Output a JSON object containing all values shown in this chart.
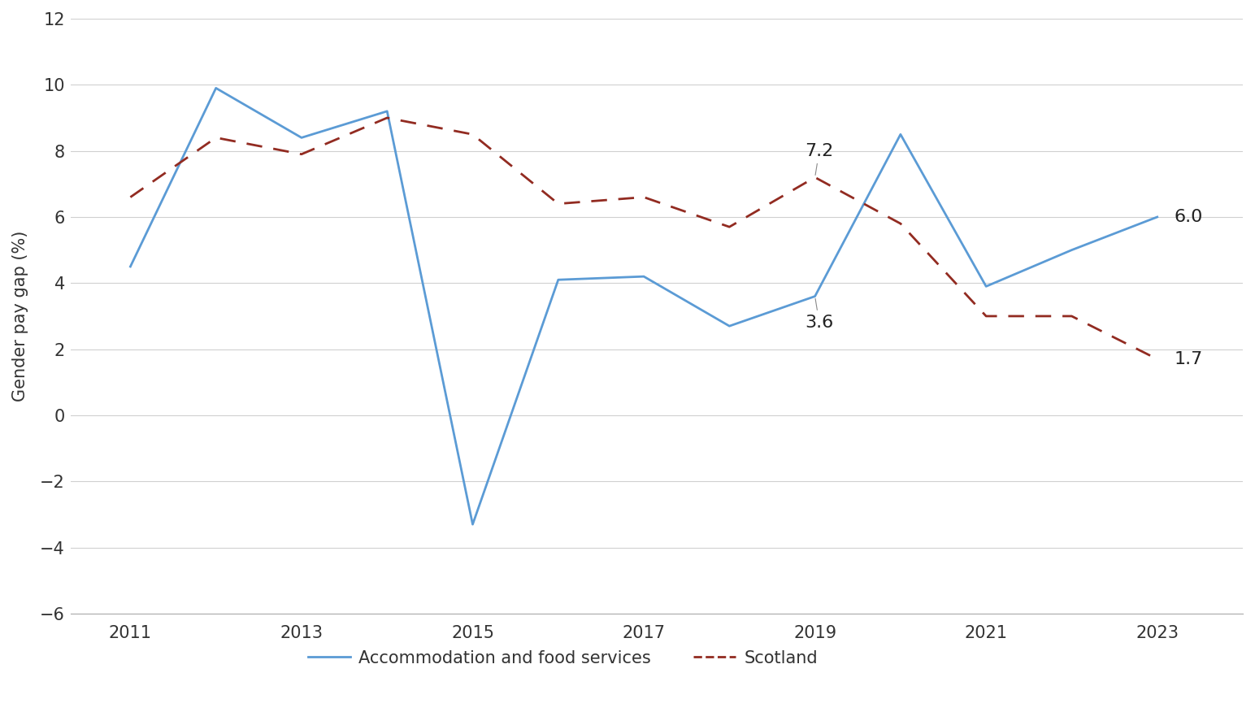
{
  "years": [
    2011,
    2012,
    2013,
    2014,
    2015,
    2016,
    2017,
    2018,
    2019,
    2020,
    2021,
    2022,
    2023
  ],
  "accommodation": [
    4.5,
    9.9,
    8.4,
    9.2,
    -3.3,
    4.1,
    4.2,
    2.7,
    3.6,
    8.5,
    3.9,
    5.0,
    6.0
  ],
  "scotland": [
    6.6,
    8.4,
    7.9,
    9.0,
    8.5,
    6.4,
    6.6,
    5.7,
    7.2,
    5.8,
    3.0,
    3.0,
    1.7
  ],
  "accommodation_color": "#5b9bd5",
  "scotland_color": "#922b21",
  "ylabel": "Gender pay gap (%)",
  "ylim": [
    -6,
    12
  ],
  "yticks": [
    -6,
    -4,
    -2,
    0,
    2,
    4,
    6,
    8,
    10,
    12
  ],
  "xticks": [
    2011,
    2013,
    2015,
    2017,
    2019,
    2021,
    2023
  ],
  "xlim_left": 2010.3,
  "xlim_right": 2024.0,
  "legend_accommodation": "Accommodation and food services",
  "legend_scotland": "Scotland",
  "annotation_2019_accom_text": "3.6",
  "annotation_2019_scot_text": "7.2",
  "annotation_2023_accom_text": "6.0",
  "annotation_2023_scot_text": "1.7",
  "background_color": "#ffffff",
  "grid_color": "#d0d0d0",
  "fontsize_ticks": 15,
  "fontsize_ylabel": 15,
  "fontsize_legend": 15,
  "fontsize_annotation": 16
}
